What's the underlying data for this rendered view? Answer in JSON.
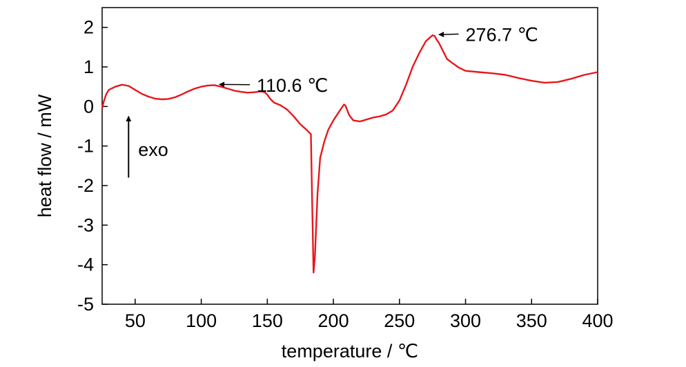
{
  "chart_data": {
    "type": "line",
    "title": "",
    "xlabel": "temperature / ℃",
    "ylabel": "heat flow / mW",
    "xlim": [
      25,
      400
    ],
    "ylim": [
      -5,
      2.5
    ],
    "xticks": [
      50,
      100,
      150,
      200,
      250,
      300,
      350,
      400
    ],
    "yticks": [
      2,
      1,
      0,
      -1,
      -2,
      -3,
      -4,
      -5
    ],
    "xtick_labels": [
      "50",
      "100",
      "150",
      "200",
      "250",
      "300",
      "350",
      "400"
    ],
    "ytick_labels": [
      "2",
      "1",
      "0",
      "-1",
      "-2",
      "-3",
      "-4",
      "-5"
    ],
    "grid": false,
    "legend": "none",
    "series": [
      {
        "color": "#e8161b",
        "x": [
          25,
          26,
          28,
          30,
          35,
          40,
          45,
          50,
          55,
          60,
          65,
          70,
          75,
          80,
          85,
          90,
          95,
          100,
          105,
          110,
          115,
          120,
          125,
          130,
          135,
          140,
          145,
          148,
          150,
          152,
          155,
          160,
          165,
          170,
          175,
          180,
          183,
          184,
          185,
          186,
          188,
          190,
          193,
          196,
          200,
          205,
          208,
          209,
          210,
          212,
          215,
          220,
          225,
          230,
          235,
          240,
          245,
          250,
          255,
          260,
          265,
          270,
          275,
          276.7,
          278,
          280,
          283,
          286,
          290,
          295,
          300,
          310,
          320,
          330,
          340,
          350,
          360,
          370,
          380,
          390,
          400
        ],
        "y": [
          -0.05,
          0.1,
          0.3,
          0.42,
          0.5,
          0.55,
          0.52,
          0.42,
          0.32,
          0.25,
          0.2,
          0.18,
          0.19,
          0.23,
          0.3,
          0.38,
          0.45,
          0.5,
          0.53,
          0.54,
          0.5,
          0.45,
          0.4,
          0.37,
          0.35,
          0.36,
          0.38,
          0.36,
          0.3,
          0.2,
          0.1,
          0.03,
          -0.08,
          -0.25,
          -0.45,
          -0.6,
          -0.7,
          -2.5,
          -4.2,
          -3.8,
          -2.2,
          -1.3,
          -0.9,
          -0.6,
          -0.35,
          -0.1,
          0.05,
          0.03,
          -0.05,
          -0.22,
          -0.35,
          -0.38,
          -0.33,
          -0.28,
          -0.25,
          -0.2,
          -0.1,
          0.15,
          0.55,
          1.0,
          1.35,
          1.65,
          1.8,
          1.78,
          1.7,
          1.6,
          1.4,
          1.2,
          1.1,
          0.98,
          0.9,
          0.87,
          0.84,
          0.8,
          0.72,
          0.65,
          0.6,
          0.62,
          0.7,
          0.8,
          0.87
        ]
      }
    ],
    "annotations": [
      {
        "text": "110.6 ℃",
        "point": [
          110.6,
          0.54
        ],
        "text_at": [
          142,
          0.55
        ]
      },
      {
        "text": "276.7 ℃",
        "point": [
          276.7,
          1.8
        ],
        "text_at": [
          300,
          1.83
        ]
      },
      {
        "text": "exo",
        "arrow_from": [
          45,
          -1.8
        ],
        "arrow_to": [
          45,
          -0.25
        ]
      }
    ]
  }
}
